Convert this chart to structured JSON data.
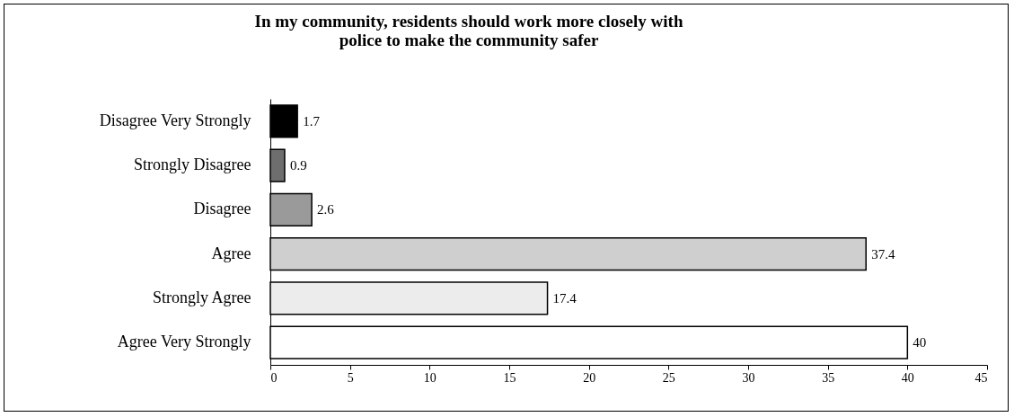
{
  "chart_data": {
    "type": "bar",
    "orientation": "horizontal",
    "title": "In my community, residents should work more closely with police to make the community safer",
    "categories": [
      "Disagree Very Strongly",
      "Strongly Disagree",
      "Disagree",
      "Agree",
      "Strongly Agree",
      "Agree Very Strongly"
    ],
    "values": [
      1.7,
      0.9,
      2.6,
      37.4,
      17.4,
      40
    ],
    "colors": [
      "#000000",
      "#6e6e6e",
      "#9a9a9a",
      "#cfcfcf",
      "#ececec",
      "#ffffff"
    ],
    "xlim": [
      0,
      45
    ],
    "xticks": [
      0,
      5,
      10,
      15,
      20,
      25,
      30,
      35,
      40,
      45
    ],
    "data_labels": true
  }
}
